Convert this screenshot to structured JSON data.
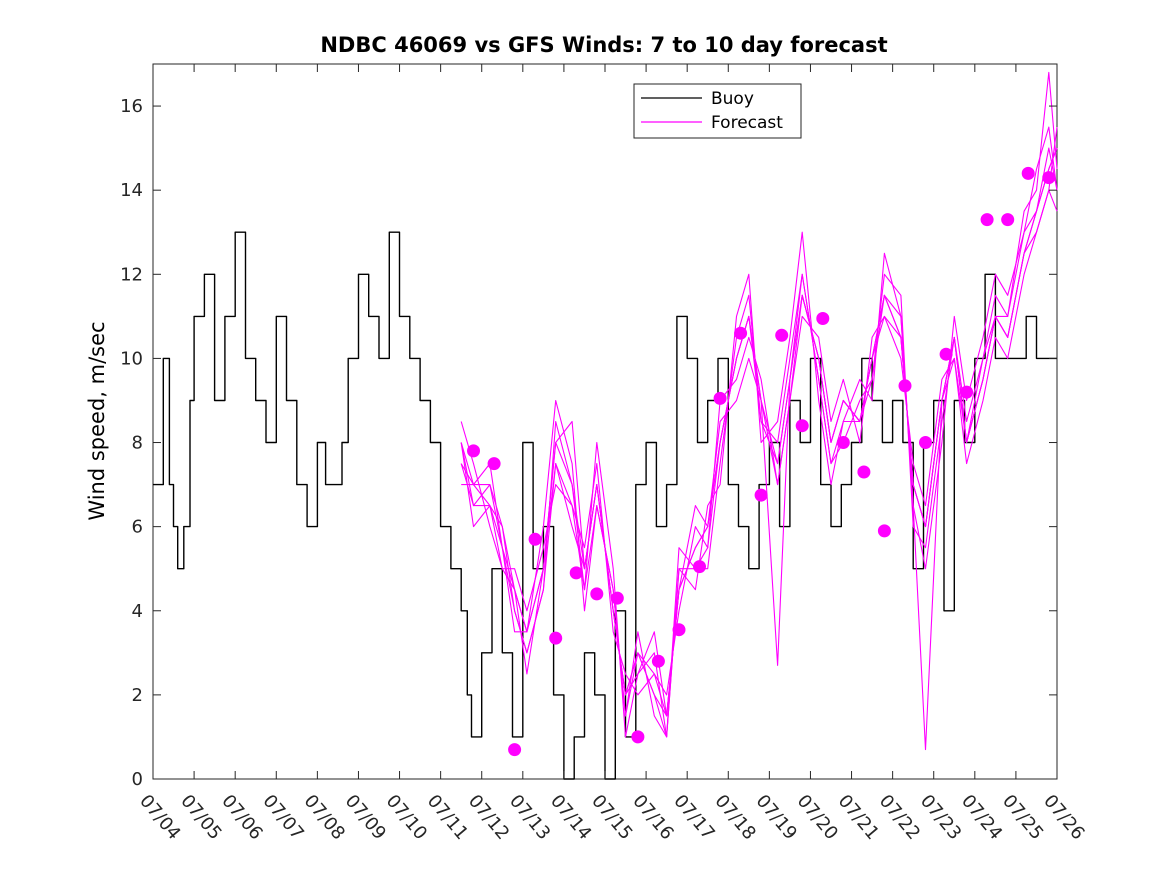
{
  "chart_data": {
    "type": "line",
    "title": "NDBC 46069 vs GFS Winds: 7 to 10 day forecast",
    "ylabel": "Wind speed, m/sec",
    "xlabel": "",
    "x_tick_labels": [
      "07/04",
      "07/05",
      "07/06",
      "07/07",
      "07/08",
      "07/09",
      "07/10",
      "07/11",
      "07/12",
      "07/13",
      "07/14",
      "07/15",
      "07/16",
      "07/17",
      "07/18",
      "07/19",
      "07/20",
      "07/21",
      "07/22",
      "07/23",
      "07/24",
      "07/25",
      "07/26"
    ],
    "y_ticks": [
      0,
      2,
      4,
      6,
      8,
      10,
      12,
      14,
      16
    ],
    "xlim": [
      0,
      22
    ],
    "ylim": [
      0,
      17
    ],
    "grid": false,
    "legend": {
      "placement": "top-center",
      "entries": [
        "Buoy",
        "Forecast"
      ]
    },
    "colors": {
      "buoy": "#000000",
      "forecast": "#ff00ff",
      "axis": "#262626"
    },
    "series": [
      {
        "name": "Buoy",
        "x": [
          0.0,
          0.25,
          0.4,
          0.5,
          0.6,
          0.75,
          0.9,
          1.0,
          1.25,
          1.5,
          1.75,
          2.0,
          2.25,
          2.5,
          2.75,
          3.0,
          3.25,
          3.5,
          3.75,
          4.0,
          4.2,
          4.4,
          4.6,
          4.75,
          5.0,
          5.25,
          5.5,
          5.75,
          6.0,
          6.25,
          6.5,
          6.75,
          7.0,
          7.25,
          7.5,
          7.65,
          7.75,
          8.0,
          8.25,
          8.5,
          8.75,
          9.0,
          9.25,
          9.5,
          9.75,
          10.0,
          10.25,
          10.5,
          10.75,
          11.0,
          11.25,
          11.5,
          11.75,
          12.0,
          12.25,
          12.5,
          12.75,
          13.0,
          13.25,
          13.5,
          13.75,
          14.0,
          14.25,
          14.5,
          14.75,
          15.0,
          15.25,
          15.5,
          15.75,
          16.0,
          16.25,
          16.5,
          16.75,
          17.0,
          17.25,
          17.5,
          17.75,
          18.0,
          18.25,
          18.5,
          18.75,
          19.0,
          19.25,
          19.5,
          19.75,
          20.0,
          20.25,
          20.5,
          20.75,
          21.0,
          21.25,
          21.5,
          21.75,
          22.0
        ],
        "y": [
          7,
          10,
          7,
          6,
          5,
          6,
          9,
          11,
          12,
          9,
          11,
          13,
          10,
          9,
          8,
          11,
          9,
          7,
          6,
          8,
          7,
          7,
          8,
          10,
          12,
          11,
          10,
          13,
          11,
          10,
          9,
          8,
          6,
          5,
          4,
          2,
          1,
          3,
          5,
          3,
          1,
          8,
          5,
          6,
          2,
          0,
          1,
          3,
          2,
          0,
          4,
          1,
          7,
          8,
          6,
          7,
          11,
          10,
          8,
          9,
          10,
          7,
          6,
          5,
          7,
          8,
          6,
          9,
          8,
          10,
          7,
          6,
          7,
          8,
          10,
          9,
          8,
          9,
          8,
          5,
          8,
          9,
          4,
          9,
          8,
          10,
          12,
          10,
          10,
          10,
          11,
          10,
          10,
          10
        ],
        "x_days": [
          0,
          0.25,
          0.4,
          0.5,
          0.6,
          0.75,
          0.9,
          1,
          1.25,
          1.5,
          1.75,
          2,
          2.25,
          2.5,
          2.75,
          3,
          3.25,
          3.5,
          3.75,
          4,
          4.2,
          4.4,
          4.6,
          4.75,
          5,
          5.25,
          5.5,
          5.75,
          6,
          6.25,
          6.5,
          6.75,
          7,
          7.25,
          7.5,
          7.65,
          7.75,
          8,
          8.25,
          8.5,
          8.75,
          9,
          9.25,
          9.5,
          9.75,
          10,
          10.25,
          10.5,
          10.75,
          11,
          11.25,
          11.5,
          11.75,
          12,
          12.25,
          12.5,
          12.75,
          13,
          13.25,
          13.5,
          13.75,
          14,
          14.25,
          14.5,
          14.75,
          15,
          15.25,
          15.5,
          15.75,
          16,
          16.25,
          16.5,
          16.75,
          17,
          17.25,
          17.5,
          17.75,
          18,
          18.25,
          18.5,
          18.75,
          19,
          19.25,
          19.5,
          19.75,
          20,
          20.25,
          20.5,
          20.75,
          21,
          21.25,
          21.5,
          21.75,
          22
        ]
      },
      {
        "name": "Forecast",
        "x": [
          7.5,
          7.8,
          8.2,
          8.5,
          8.8,
          9.1,
          9.5,
          9.8,
          10.2,
          10.5,
          10.8,
          11.2,
          11.5,
          11.8,
          12.2,
          12.5,
          12.8,
          13.2,
          13.5,
          13.8,
          14.2,
          14.5,
          14.8,
          15.2,
          15.5,
          15.8,
          16.2,
          16.5,
          16.8,
          17.2,
          17.5,
          17.8,
          18.2,
          18.5,
          18.8,
          19.2,
          19.5,
          19.8,
          20.2,
          20.5,
          20.8,
          21.2,
          21.5,
          21.8,
          22.0
        ],
        "y": [
          8.0,
          7.0,
          6.5,
          5.5,
          4.5,
          3.5,
          5.0,
          7.5,
          6.0,
          5.0,
          7.0,
          4.0,
          2.0,
          3.0,
          2.0,
          1.5,
          4.5,
          5.5,
          6.0,
          8.0,
          10.0,
          11.0,
          9.0,
          7.5,
          9.5,
          11.5,
          10.0,
          8.0,
          9.0,
          8.5,
          10.0,
          11.5,
          10.5,
          7.0,
          6.0,
          9.0,
          10.5,
          8.0,
          9.5,
          11.0,
          10.5,
          12.5,
          13.5,
          14.5,
          15.0
        ]
      },
      {
        "name": "Forecast",
        "x": [
          7.5,
          7.8,
          8.2,
          8.5,
          8.8,
          9.1,
          9.5,
          9.8,
          10.2,
          10.5,
          10.8,
          11.2,
          11.5,
          11.8,
          12.2,
          12.5,
          12.8,
          13.2,
          13.5,
          13.8,
          14.2,
          14.5,
          14.8,
          15.2,
          15.5,
          15.8,
          16.2,
          16.5,
          16.8,
          17.2,
          17.5,
          17.8,
          18.2,
          18.5,
          18.8,
          19.2,
          19.5,
          19.8,
          20.2,
          20.5,
          20.8,
          21.2,
          21.5,
          21.8,
          22.0
        ],
        "y": [
          7.5,
          6.5,
          7.0,
          6.0,
          4.0,
          3.0,
          4.5,
          8.5,
          7.0,
          4.5,
          8.0,
          5.0,
          1.0,
          2.5,
          3.0,
          1.0,
          5.0,
          4.5,
          6.5,
          7.0,
          11.0,
          12.0,
          8.0,
          8.5,
          10.5,
          13.0,
          9.0,
          7.0,
          8.5,
          9.5,
          9.0,
          12.5,
          11.0,
          6.5,
          5.0,
          8.0,
          11.0,
          9.0,
          10.5,
          12.0,
          11.5,
          13.0,
          14.5,
          15.5,
          14.0
        ]
      },
      {
        "name": "Forecast",
        "x": [
          7.5,
          7.8,
          8.2,
          8.5,
          8.8,
          9.1,
          9.5,
          9.8,
          10.2,
          10.5,
          10.8,
          11.2,
          11.5,
          11.8,
          12.2,
          12.5,
          12.8,
          13.2,
          13.5,
          13.8,
          14.2,
          14.5,
          14.8,
          15.2,
          15.5,
          15.8,
          16.2,
          16.5,
          16.8,
          17.2,
          17.5,
          17.8,
          18.2,
          18.5,
          18.8,
          19.2,
          19.5,
          19.8,
          20.2,
          20.5,
          20.8,
          21.2,
          21.5,
          21.8,
          22.0
        ],
        "y": [
          8.5,
          7.5,
          6.0,
          5.0,
          5.0,
          4.0,
          5.5,
          7.0,
          6.5,
          5.5,
          7.5,
          3.5,
          2.5,
          2.0,
          2.5,
          2.0,
          4.0,
          6.0,
          5.5,
          9.0,
          9.5,
          10.5,
          9.5,
          7.0,
          9.0,
          11.0,
          10.5,
          8.5,
          9.5,
          8.0,
          10.5,
          11.0,
          10.0,
          7.5,
          6.5,
          9.5,
          10.0,
          7.5,
          9.0,
          10.5,
          10.0,
          12.0,
          13.0,
          14.0,
          15.5
        ]
      },
      {
        "name": "Forecast",
        "x": [
          7.5,
          7.8,
          8.2,
          8.5,
          8.8,
          9.1,
          9.5,
          9.8,
          10.2,
          10.5,
          10.8,
          11.2,
          11.5,
          11.8,
          12.2,
          12.5,
          12.8,
          13.2,
          13.5,
          13.8,
          14.2,
          14.5,
          14.8,
          15.2,
          15.5,
          15.8,
          16.2,
          16.5,
          16.8,
          17.2,
          17.5,
          17.8,
          18.2,
          18.5,
          18.8,
          19.2,
          19.5,
          19.8,
          20.2,
          20.5,
          20.8,
          21.2,
          21.5,
          21.8,
          22.0
        ],
        "y": [
          7.0,
          7.0,
          7.5,
          5.5,
          3.5,
          3.5,
          6.0,
          9.0,
          7.5,
          4.0,
          6.5,
          4.5,
          1.5,
          3.5,
          1.5,
          1.0,
          5.5,
          5.0,
          5.0,
          7.5,
          10.5,
          11.5,
          8.5,
          8.0,
          10.0,
          12.0,
          9.5,
          7.5,
          8.0,
          9.0,
          9.5,
          12.0,
          11.5,
          6.0,
          5.5,
          8.5,
          10.5,
          8.5,
          10.0,
          11.5,
          11.0,
          13.5,
          14.0,
          16.8,
          14.5
        ]
      },
      {
        "name": "Forecast",
        "x": [
          7.5,
          7.8,
          8.2,
          8.5,
          8.8,
          9.1,
          9.5,
          9.8,
          10.2,
          10.5,
          10.8,
          11.2,
          11.5,
          11.8,
          12.2,
          12.5,
          12.8,
          13.2,
          13.5,
          13.8,
          14.2,
          14.5,
          14.8,
          15.2,
          15.5,
          15.8,
          16.2,
          16.5,
          16.8,
          17.2,
          17.5,
          17.8,
          18.2,
          18.5,
          18.8,
          19.2,
          19.5,
          19.8,
          20.2,
          20.5,
          20.8,
          21.2,
          21.5,
          21.8,
          22.0
        ],
        "y": [
          8.0,
          6.0,
          6.5,
          6.0,
          4.5,
          2.5,
          5.0,
          8.0,
          8.5,
          5.0,
          7.0,
          4.0,
          2.0,
          2.5,
          3.5,
          1.5,
          4.5,
          6.5,
          6.0,
          8.5,
          9.0,
          10.0,
          9.0,
          7.0,
          9.0,
          11.5,
          10.0,
          8.0,
          9.0,
          8.5,
          10.0,
          11.0,
          10.5,
          7.0,
          6.0,
          9.0,
          10.0,
          8.0,
          9.5,
          11.0,
          10.5,
          12.5,
          13.0,
          14.0,
          13.5
        ]
      },
      {
        "name": "Forecast",
        "x": [
          7.5,
          7.8,
          8.2,
          8.5,
          8.8,
          9.1,
          9.5,
          9.8,
          10.2,
          10.5,
          10.8,
          11.2,
          11.5,
          11.8,
          12.2,
          12.5,
          12.8,
          13.2,
          13.5,
          13.8,
          14.2,
          14.5,
          14.8,
          15.2,
          15.5,
          15.8,
          16.2,
          16.5,
          16.8,
          17.2,
          17.5,
          17.8,
          18.2,
          18.5,
          18.8,
          19.2,
          19.5,
          19.8,
          20.2,
          20.5,
          20.8,
          21.2,
          21.5,
          21.8,
          22.0
        ],
        "y": [
          7.5,
          7.0,
          7.0,
          5.5,
          4.0,
          3.0,
          4.5,
          7.5,
          6.5,
          4.5,
          6.5,
          4.5,
          1.5,
          3.0,
          2.0,
          1.0,
          5.0,
          5.0,
          5.5,
          8.0,
          10.0,
          11.0,
          8.5,
          7.5,
          9.5,
          12.0,
          9.5,
          7.5,
          8.5,
          8.5,
          9.5,
          11.5,
          11.0,
          6.5,
          0.7,
          9.0,
          10.5,
          8.0,
          10.0,
          11.0,
          11.0,
          13.0,
          13.5,
          15.0,
          14.0
        ]
      },
      {
        "name": "Forecast",
        "x": [
          7.5,
          7.8,
          8.2,
          8.5,
          8.8,
          9.1,
          9.5,
          9.8,
          10.2,
          10.5,
          10.8,
          11.2,
          11.5,
          11.8,
          12.2,
          12.5,
          12.8,
          13.2,
          13.5,
          13.8,
          14.2,
          14.5,
          14.8,
          15.2,
          15.5,
          15.8,
          16.2,
          16.5,
          16.8,
          17.2,
          17.5,
          17.8,
          18.2,
          18.5,
          18.8,
          19.2,
          19.5,
          19.8,
          20.2,
          20.5,
          20.8,
          21.2,
          21.5,
          21.8,
          22.0
        ],
        "y": [
          8.0,
          6.5,
          6.5,
          5.0,
          4.5,
          3.5,
          5.0,
          8.0,
          7.0,
          5.0,
          7.0,
          4.0,
          2.0,
          3.0,
          2.5,
          1.5,
          4.5,
          5.5,
          6.0,
          8.0,
          10.0,
          11.0,
          9.0,
          2.7,
          9.5,
          11.5,
          10.0,
          8.0,
          9.0,
          8.5,
          10.0,
          11.5,
          10.5,
          7.0,
          6.0,
          9.0,
          10.5,
          8.0,
          9.5,
          11.0,
          10.5,
          12.5,
          13.5,
          14.5,
          15.0
        ]
      }
    ],
    "dots": {
      "name": "Forecast",
      "x": [
        7.8,
        8.3,
        8.8,
        9.3,
        9.8,
        10.3,
        10.8,
        11.3,
        11.8,
        12.3,
        12.8,
        13.3,
        13.8,
        14.3,
        14.8,
        15.3,
        15.8,
        16.3,
        16.8,
        17.3,
        17.8,
        18.3,
        18.8,
        19.3,
        19.8,
        20.3,
        20.8,
        21.3,
        21.8
      ],
      "y": [
        7.8,
        7.5,
        0.7,
        5.7,
        3.35,
        4.9,
        4.4,
        4.3,
        1.0,
        2.8,
        3.55,
        5.05,
        9.05,
        10.6,
        6.75,
        10.55,
        8.4,
        10.95,
        8.0,
        7.3,
        5.9,
        9.35,
        8.0,
        10.1,
        9.2,
        13.3,
        13.3,
        14.4,
        14.3
      ]
    }
  }
}
